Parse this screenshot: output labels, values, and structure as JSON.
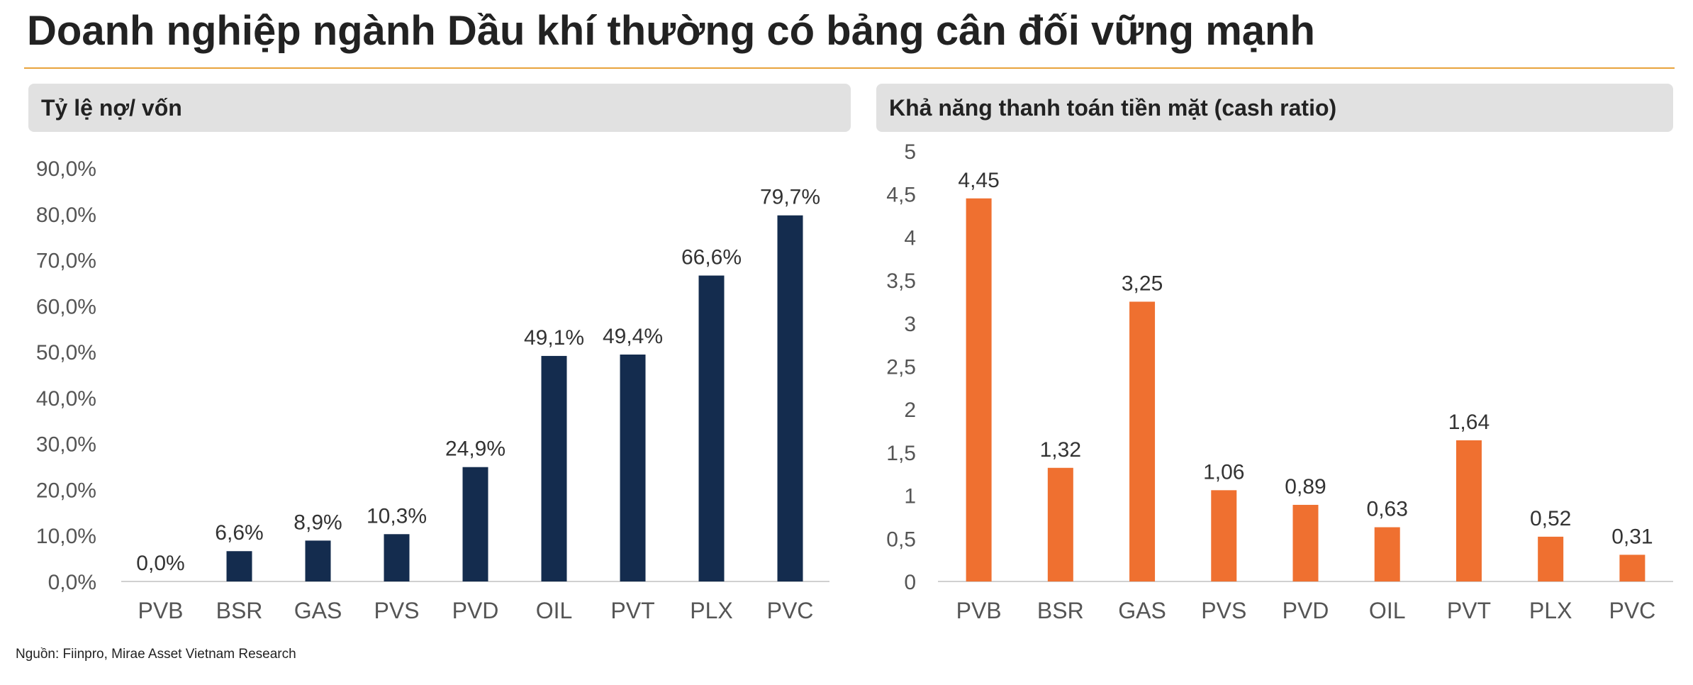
{
  "title": "Doanh nghiệp ngành Dầu khí thường có bảng cân đối vững mạnh",
  "source": "Nguồn: Fiinpro, Mirae Asset Vietnam Research",
  "colors": {
    "rule": "#e8a33c",
    "navy": "#142c4e",
    "orange": "#ef7030",
    "header_bg": "#e1e1e1"
  },
  "chart_data": [
    {
      "type": "bar",
      "title": "Tỷ lệ nợ/ vốn",
      "categories": [
        "PVB",
        "BSR",
        "GAS",
        "PVS",
        "PVD",
        "OIL",
        "PVT",
        "PLX",
        "PVC"
      ],
      "values": [
        0.0,
        6.6,
        8.9,
        10.3,
        24.9,
        49.1,
        49.4,
        66.6,
        79.7
      ],
      "value_labels": [
        "0,0%",
        "6,6%",
        "8,9%",
        "10,3%",
        "24,9%",
        "49,1%",
        "49,4%",
        "66,6%",
        "79,7%"
      ],
      "ylim": [
        0,
        90
      ],
      "yticks": [
        0,
        10,
        20,
        30,
        40,
        50,
        60,
        70,
        80,
        90
      ],
      "ytick_labels": [
        "0,0%",
        "10,0%",
        "20,0%",
        "30,0%",
        "40,0%",
        "50,0%",
        "60,0%",
        "70,0%",
        "80,0%",
        "90,0%"
      ],
      "color": "#142c4e",
      "grid": false,
      "xlabel": "",
      "ylabel": ""
    },
    {
      "type": "bar",
      "title": "Khả năng thanh toán tiền mặt (cash ratio)",
      "categories": [
        "PVB",
        "BSR",
        "GAS",
        "PVS",
        "PVD",
        "OIL",
        "PVT",
        "PLX",
        "PVC"
      ],
      "values": [
        4.45,
        1.32,
        3.25,
        1.06,
        0.89,
        0.63,
        1.64,
        0.52,
        0.31
      ],
      "value_labels": [
        "4,45",
        "1,32",
        "3,25",
        "1,06",
        "0,89",
        "0,63",
        "1,64",
        "0,52",
        "0,31"
      ],
      "ylim": [
        0,
        5
      ],
      "yticks": [
        0,
        0.5,
        1,
        1.5,
        2,
        2.5,
        3,
        3.5,
        4,
        4.5,
        5
      ],
      "ytick_labels": [
        "0",
        "0,5",
        "1",
        "1,5",
        "2",
        "2,5",
        "3",
        "3,5",
        "4",
        "4,5",
        "5"
      ],
      "color": "#ef7030",
      "grid": false,
      "xlabel": "",
      "ylabel": ""
    }
  ]
}
